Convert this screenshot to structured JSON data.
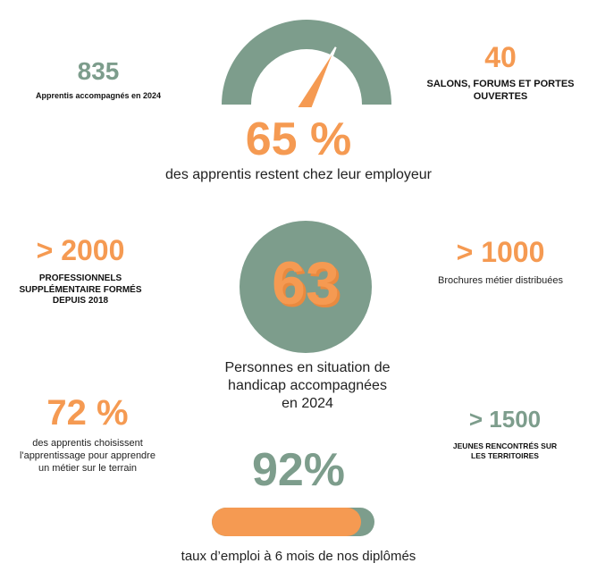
{
  "stats": {
    "apprentis": {
      "value": "835",
      "label": "Apprentis accompagnés en 2024"
    },
    "salons": {
      "value": "40",
      "label": "SALONS, FORUMS ET PORTES OUVERTES"
    },
    "gauge": {
      "value": "65 %",
      "label": "des apprentis restent chez leur employeur",
      "fraction": 0.65
    },
    "professionnels": {
      "value": "> 2000",
      "label_line1": "PROFESSIONNELS",
      "label_line2": "SUPPLÉMENTAIRE FORMÉS",
      "label_line3": "DEPUIS 2018"
    },
    "handicap": {
      "value": "63",
      "label_line1": "Personnes en situation de",
      "label_line2": "handicap accompagnées",
      "label_line3": "en 2024"
    },
    "brochures": {
      "value": "> 1000",
      "label": "Brochures métier distribuées"
    },
    "choix": {
      "value": "72 %",
      "label_line1": "des apprentis choisissent",
      "label_line2": "l'apprentissage pour apprendre",
      "label_line3": "un métier sur le terrain"
    },
    "jeunes": {
      "value": "> 1500",
      "label_line1": "JEUNES RENCONTRÉS SUR",
      "label_line2": "LES TERRITOIRES"
    },
    "emploi": {
      "value": "92%",
      "label": "taux d’emploi à 6 mois de nos diplômés",
      "fraction": 0.92
    }
  },
  "colors": {
    "green": "#7d9d8c",
    "orange": "#f59a52"
  }
}
